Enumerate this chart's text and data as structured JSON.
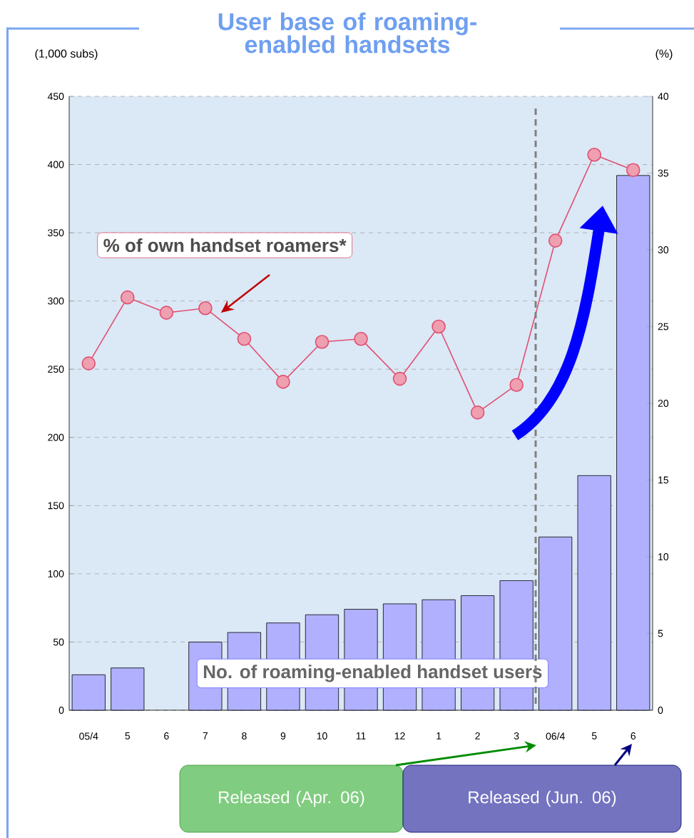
{
  "chart_data": {
    "type": "bar",
    "title": "User base of roaming-enabled handsets",
    "ylabel": "(1,000 subs)",
    "y2label": "(%)",
    "categories": [
      "05/4",
      "5",
      "6",
      "7",
      "8",
      "9",
      "10",
      "11",
      "12",
      "1",
      "2",
      "3",
      "06/4",
      "5",
      "6"
    ],
    "series": [
      {
        "name": "No. of roaming-enabled handset users",
        "color": "#b0b0ff",
        "values": [
          26,
          31,
          null,
          50,
          57,
          64,
          70,
          74,
          78,
          81,
          84,
          95,
          127,
          172,
          392
        ]
      },
      {
        "name": "% of own handset roamers*",
        "type": "line",
        "axis": "y2",
        "color": "#e05070",
        "values": [
          22.6,
          26.9,
          25.9,
          26.2,
          24.2,
          21.4,
          24.0,
          24.2,
          21.6,
          25.0,
          19.4,
          21.2,
          30.6,
          36.2,
          35.2
        ]
      }
    ],
    "marker": "circle",
    "grid": "y",
    "ylim": [
      0,
      450
    ],
    "yticks": [
      0,
      50,
      100,
      150,
      200,
      250,
      300,
      350,
      400,
      450
    ],
    "y2lim": [
      0,
      40
    ],
    "y2ticks": [
      0,
      5,
      10,
      15,
      20,
      25,
      30,
      35,
      40
    ],
    "annotations": [
      "Released (Apr. 06)",
      "Released (Jun. 06)"
    ]
  }
}
